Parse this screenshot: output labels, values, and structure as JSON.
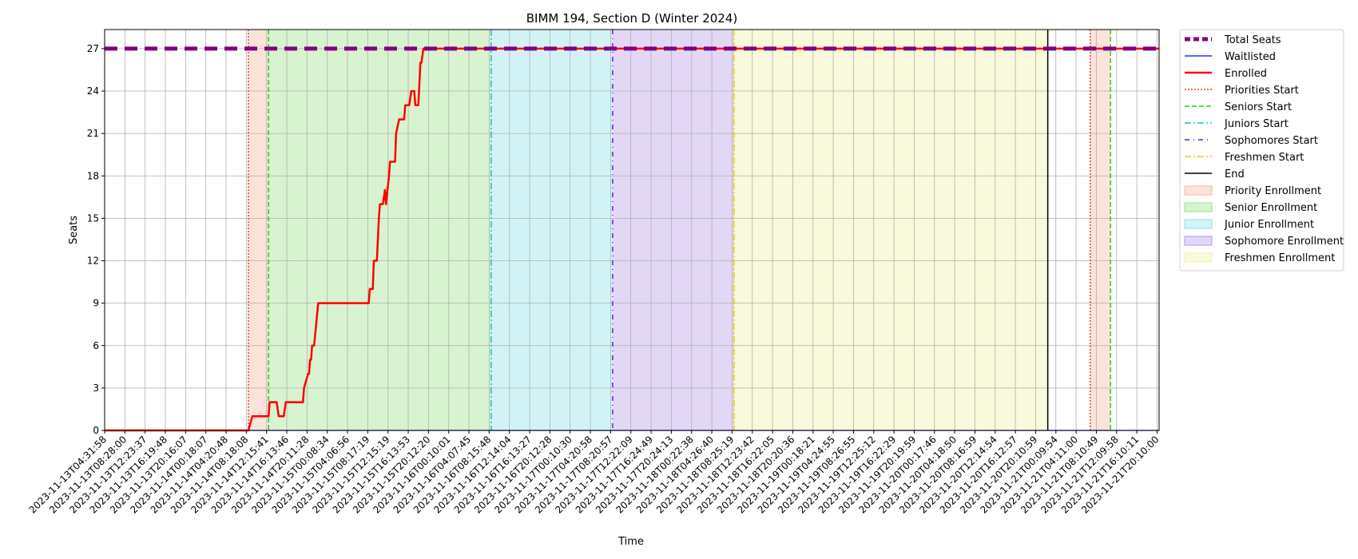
{
  "chart_data": {
    "type": "line",
    "title": "BIMM 194, Section D (Winter 2024)",
    "xlabel": "Time",
    "ylabel": "Seats",
    "ylim": [
      0,
      28.35
    ],
    "yticks": [
      0,
      3,
      6,
      9,
      12,
      15,
      18,
      21,
      24,
      27
    ],
    "grid": true,
    "legend_position": "outside-right",
    "xticks": [
      "2023-11-13T04:31:58",
      "2023-11-13T08:28:00",
      "2023-11-13T12:23:37",
      "2023-11-13T16:19:48",
      "2023-11-13T20:16:07",
      "2023-11-14T00:18:07",
      "2023-11-14T04:20:48",
      "2023-11-14T08:18:08",
      "2023-11-14T12:15:41",
      "2023-11-14T16:13:46",
      "2023-11-14T20:11:28",
      "2023-11-15T00:08:34",
      "2023-11-15T04:06:56",
      "2023-11-15T08:17:19",
      "2023-11-15T12:15:19",
      "2023-11-15T16:13:53",
      "2023-11-15T20:12:20",
      "2023-11-16T00:10:01",
      "2023-11-16T04:07:45",
      "2023-11-16T08:15:48",
      "2023-11-16T12:14:04",
      "2023-11-16T16:13:27",
      "2023-11-16T20:12:28",
      "2023-11-17T00:10:30",
      "2023-11-17T04:20:58",
      "2023-11-17T08:20:57",
      "2023-11-17T12:22:09",
      "2023-11-17T16:24:49",
      "2023-11-17T20:24:13",
      "2023-11-18T00:22:38",
      "2023-11-18T04:26:40",
      "2023-11-18T08:25:19",
      "2023-11-18T12:23:42",
      "2023-11-18T16:22:05",
      "2023-11-18T20:20:36",
      "2023-11-19T00:18:21",
      "2023-11-19T04:24:55",
      "2023-11-19T08:26:55",
      "2023-11-19T12:25:12",
      "2023-11-19T16:22:29",
      "2023-11-19T20:19:59",
      "2023-11-20T00:17:46",
      "2023-11-20T04:18:50",
      "2023-11-20T08:16:59",
      "2023-11-20T12:14:54",
      "2023-11-20T16:12:57",
      "2023-11-20T20:10:59",
      "2023-11-21T00:09:54",
      "2023-11-21T04:11:00",
      "2023-11-21T08:10:49",
      "2023-11-21T12:09:58",
      "2023-11-21T16:10:11",
      "2023-11-21T20:10:00"
    ],
    "x_range_ticks": [
      0,
      52.1
    ],
    "phases": [
      {
        "name": "Priority Enrollment",
        "start": 7.1,
        "end": 8.1,
        "color": "#f4b9a0"
      },
      {
        "name": "Senior Enrollment",
        "start": 8.1,
        "end": 19.1,
        "color": "#9de08a"
      },
      {
        "name": "Junior Enrollment",
        "start": 19.1,
        "end": 25.1,
        "color": "#8ee2e6"
      },
      {
        "name": "Sophomore Enrollment",
        "start": 25.1,
        "end": 31.1,
        "color": "#b99ae8"
      },
      {
        "name": "Freshmen Enrollment",
        "start": 31.1,
        "end": 46.6,
        "color": "#f0f0a6"
      },
      {
        "name": "Priority Enrollment",
        "start": 48.7,
        "end": 49.7,
        "color": "#f4b9a0"
      }
    ],
    "phase_lines": [
      {
        "name": "Priorities Start",
        "x": 7.1,
        "color": "#e0452e",
        "dash": "2,2"
      },
      {
        "name": "Seniors Start",
        "x": 8.1,
        "color": "#22cc22",
        "dash": "6,3"
      },
      {
        "name": "Juniors Start",
        "x": 19.1,
        "color": "#17becf",
        "dash": "8,3,2,3"
      },
      {
        "name": "Sophomores Start",
        "x": 25.1,
        "color": "#6a1fd0",
        "dash": "6,5,1,5"
      },
      {
        "name": "Freshmen Start",
        "x": 31.1,
        "color": "#e6cc00",
        "dash": "8,3,2,3"
      },
      {
        "name": "End",
        "x": 46.6,
        "color": "#000000",
        "dash": ""
      },
      {
        "name": "Priorities Start",
        "x": 48.7,
        "color": "#e0452e",
        "dash": "2,2"
      },
      {
        "name": "Seniors Start",
        "x": 49.7,
        "color": "#22cc22",
        "dash": "6,3"
      }
    ],
    "series": [
      {
        "name": "Total Seats",
        "color": "#800080",
        "x": [
          0,
          52.1
        ],
        "y": [
          27,
          27
        ]
      },
      {
        "name": "Waitlisted",
        "color": "#0000ff",
        "x": [
          0,
          52.1
        ],
        "y": [
          0,
          0
        ]
      },
      {
        "name": "Enrolled",
        "color": "#ff0000",
        "x": [
          0,
          7.1,
          7.3,
          8.1,
          8.15,
          8.5,
          8.6,
          8.85,
          8.95,
          9.2,
          9.3,
          9.35,
          9.7,
          9.8,
          9.85,
          10.05,
          10.1,
          10.15,
          10.2,
          10.25,
          10.3,
          10.35,
          10.55,
          13.05,
          13.1,
          13.25,
          13.3,
          13.45,
          13.55,
          13.6,
          13.75,
          13.85,
          13.9,
          14.05,
          14.1,
          14.25,
          14.35,
          14.4,
          14.55,
          14.6,
          14.8,
          14.85,
          15.05,
          15.15,
          15.3,
          15.35,
          15.5,
          15.6,
          15.65,
          15.75,
          15.8,
          15.9,
          16.0,
          52.1
        ],
        "y": [
          0,
          0,
          1,
          1,
          2,
          2,
          1,
          1,
          2,
          2,
          2,
          2,
          2,
          2,
          3,
          4,
          4,
          5,
          5,
          6,
          6,
          6,
          9,
          9,
          10,
          10,
          12,
          12,
          15,
          16,
          16,
          17,
          16,
          18,
          19,
          19,
          19,
          21,
          22,
          22,
          22,
          23,
          23,
          24,
          24,
          23,
          23,
          26,
          26,
          27,
          27,
          27,
          27,
          27
        ]
      }
    ],
    "legend": [
      {
        "label": "Total Seats",
        "kind": "line",
        "color": "#800080",
        "width": 5,
        "dash": "7,4"
      },
      {
        "label": "Waitlisted",
        "kind": "line",
        "color": "#0000ff",
        "width": 1.3,
        "dash": ""
      },
      {
        "label": "Enrolled",
        "kind": "line",
        "color": "#ff0000",
        "width": 2.5,
        "dash": ""
      },
      {
        "label": "Priorities Start",
        "kind": "line",
        "color": "#e0452e",
        "width": 1.4,
        "dash": "2,2"
      },
      {
        "label": "Seniors Start",
        "kind": "line",
        "color": "#22cc22",
        "width": 1.4,
        "dash": "6,3"
      },
      {
        "label": "Juniors Start",
        "kind": "line",
        "color": "#17becf",
        "width": 1.4,
        "dash": "8,3,2,3"
      },
      {
        "label": "Sophomores Start",
        "kind": "line",
        "color": "#6a1fd0",
        "width": 1.6,
        "dash": "6,5,1,5"
      },
      {
        "label": "Freshmen Start",
        "kind": "line",
        "color": "#e6cc00",
        "width": 1.4,
        "dash": "8,3,2,3"
      },
      {
        "label": "End",
        "kind": "line",
        "color": "#000000",
        "width": 1.6,
        "dash": ""
      },
      {
        "label": "Priority Enrollment",
        "kind": "patch",
        "color": "#f4b9a0"
      },
      {
        "label": "Senior Enrollment",
        "kind": "patch",
        "color": "#9de08a"
      },
      {
        "label": "Junior Enrollment",
        "kind": "patch",
        "color": "#8ee2e6"
      },
      {
        "label": "Sophomore Enrollment",
        "kind": "patch",
        "color": "#b99ae8"
      },
      {
        "label": "Freshmen Enrollment",
        "kind": "patch",
        "color": "#f0f0a6"
      }
    ]
  }
}
